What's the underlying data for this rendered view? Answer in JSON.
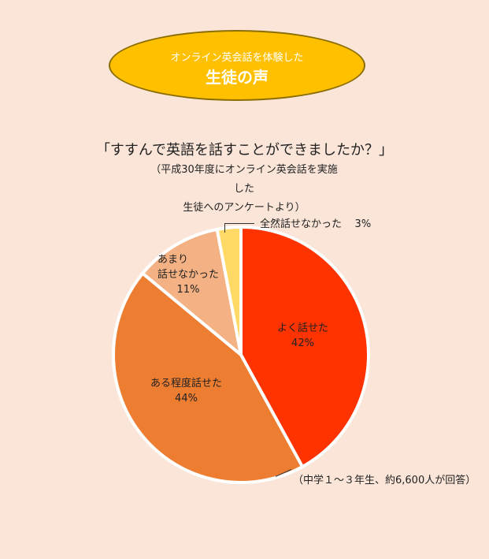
{
  "badge": {
    "subtitle": "オンライン英会話を体験した",
    "title": "生徒の声"
  },
  "question": "「すすんで英語を話すことができましたか？」",
  "note_lines": [
    "（平成30年度にオンライン英会話を実施した",
    "生徒へのアンケートより）"
  ],
  "respondents": "（中学１～３年生、約6,600人が回答）",
  "colors": {
    "background": "#fae5d8",
    "badge": "#ffc000",
    "slice_1": "#ff3300",
    "slice_2": "#ed7d31",
    "slice_3": "#f4b183",
    "slice_4": "#ffd966"
  },
  "chart_data": {
    "type": "pie",
    "title": "「すすんで英語を話すことができましたか？」",
    "slices": [
      {
        "label": "よく話せた",
        "value": 42,
        "value_text": "42%"
      },
      {
        "label": "ある程度話せた",
        "value": 44,
        "value_text": "44%"
      },
      {
        "label": "あまり 話せなかった",
        "value": 11,
        "value_text": "11%"
      },
      {
        "label": "全然話せなかった",
        "value": 3,
        "value_text": "3%"
      }
    ]
  }
}
